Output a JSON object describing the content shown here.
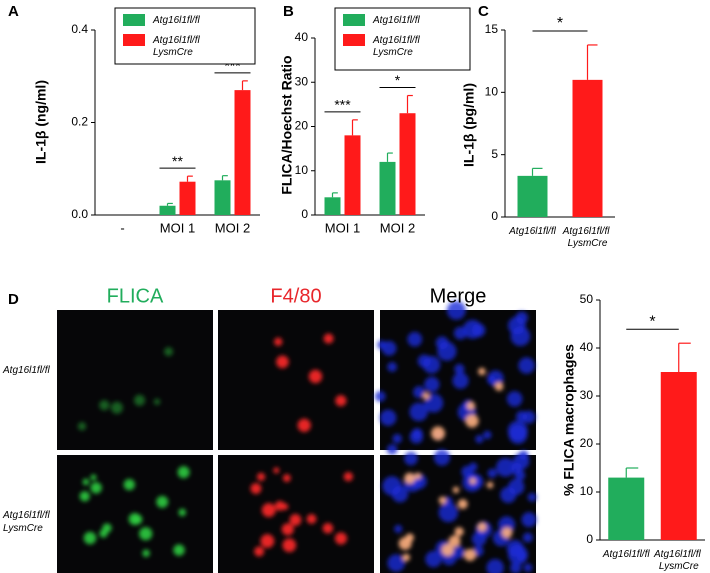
{
  "chart_data": [
    {
      "type": "bar",
      "panel_label": "A",
      "y_label": "IL-1β (ng/ml)",
      "categories": [
        "-",
        "MOI 1",
        "MOI 2"
      ],
      "series": [
        {
          "name": "Atg16l1fl/fl",
          "color": "#21ad5c",
          "values": [
            0,
            0.02,
            0.075
          ],
          "errors": [
            0,
            0.005,
            0.01
          ]
        },
        {
          "name": "Atg16l1fl/fl LysmCre",
          "color": "#ff1a1a",
          "values": [
            0,
            0.072,
            0.27
          ],
          "errors": [
            0,
            0.012,
            0.02
          ]
        }
      ],
      "ylim": [
        0,
        0.4
      ],
      "yticks": [
        {
          "value": 0,
          "label": "0.0"
        },
        0.2,
        0.4
      ],
      "significance": [
        null,
        "**",
        "***"
      ]
    },
    {
      "type": "bar",
      "panel_label": "B",
      "y_label": "FLICA/Hoechst Ratio",
      "categories": [
        "MOI 1",
        "MOI 2"
      ],
      "series": [
        {
          "name": "Atg16l1fl/fl",
          "color": "#21ad5c",
          "values": [
            4,
            12
          ],
          "errors": [
            1,
            2
          ]
        },
        {
          "name": "Atg16l1fl/fl LysmCre",
          "color": "#ff1a1a",
          "values": [
            18,
            23
          ],
          "errors": [
            3.5,
            4
          ]
        }
      ],
      "ylim": [
        0,
        40
      ],
      "yticks": [
        0,
        10,
        20,
        30,
        40
      ],
      "significance": [
        "***",
        "*"
      ]
    },
    {
      "type": "bar",
      "panel_label": "C",
      "y_label": "IL-1β (pg/ml)",
      "categories": [
        "Atg16l1fl/fl",
        "Atg16l1fl/fl LysmCre"
      ],
      "values": [
        3.3,
        11
      ],
      "errors": [
        0.6,
        2.8
      ],
      "colors": [
        "#21ad5c",
        "#ff1a1a"
      ],
      "ylim": [
        0,
        15
      ],
      "yticks": [
        0,
        5,
        10,
        15
      ],
      "significance": "*"
    },
    {
      "type": "bar",
      "panel_label": "D",
      "y_label": "% FLICA macrophages",
      "image_columns": [
        "FLICA",
        "F4/80",
        "Merge"
      ],
      "image_rows": [
        "Atg16l1fl/fl",
        "Atg16l1fl/fl LysmCre"
      ],
      "categories": [
        "Atg16l1fl/fl",
        "Atg16l1fl/fl LysmCre"
      ],
      "values": [
        13,
        35
      ],
      "errors": [
        2,
        6
      ],
      "colors": [
        "#21ad5c",
        "#ff1a1a"
      ],
      "ylim": [
        0,
        50
      ],
      "yticks": [
        0,
        10,
        20,
        30,
        40,
        50
      ],
      "significance": "*"
    }
  ]
}
